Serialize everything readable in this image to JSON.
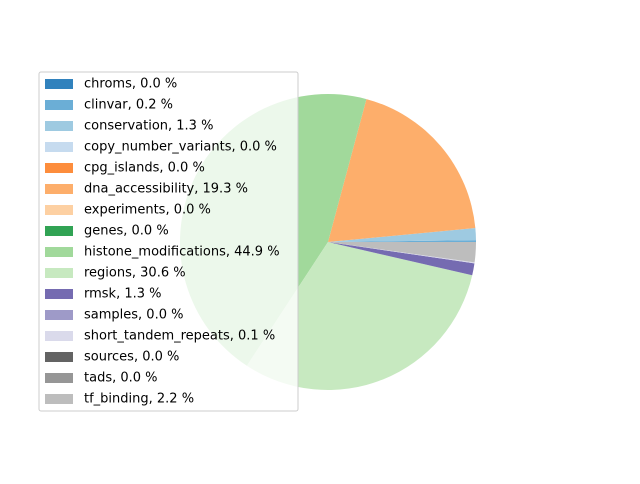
{
  "chart_data": {
    "type": "pie",
    "title": "",
    "legend_location": "center-left",
    "start_angle_deg": 0,
    "direction": "counterclockwise",
    "slices": [
      {
        "label": "chroms",
        "value": 0.0,
        "display": "chroms, 0.0 %",
        "color": "#3182bd"
      },
      {
        "label": "clinvar",
        "value": 0.2,
        "display": "clinvar, 0.2 %",
        "color": "#6baed6"
      },
      {
        "label": "conservation",
        "value": 1.3,
        "display": "conservation, 1.3 %",
        "color": "#9ecae1"
      },
      {
        "label": "copy_number_variants",
        "value": 0.0,
        "display": "copy_number_variants, 0.0 %",
        "color": "#c6dbef"
      },
      {
        "label": "cpg_islands",
        "value": 0.0,
        "display": "cpg_islands, 0.0 %",
        "color": "#fd8d3c"
      },
      {
        "label": "dna_accessibility",
        "value": 19.3,
        "display": "dna_accessibility, 19.3 %",
        "color": "#fdae6b"
      },
      {
        "label": "experiments",
        "value": 0.0,
        "display": "experiments, 0.0 %",
        "color": "#fdd0a2"
      },
      {
        "label": "genes",
        "value": 0.0,
        "display": "genes, 0.0 %",
        "color": "#31a354"
      },
      {
        "label": "histone_modifications",
        "value": 44.9,
        "display": "histone_modifications, 44.9 %",
        "color": "#a1d99b"
      },
      {
        "label": "regions",
        "value": 30.6,
        "display": "regions, 30.6 %",
        "color": "#c7e9c0"
      },
      {
        "label": "rmsk",
        "value": 1.3,
        "display": "rmsk, 1.3 %",
        "color": "#756bb1"
      },
      {
        "label": "samples",
        "value": 0.0,
        "display": "samples, 0.0 %",
        "color": "#9e9ac8"
      },
      {
        "label": "short_tandem_repeats",
        "value": 0.1,
        "display": "short_tandem_repeats, 0.1 %",
        "color": "#dadaeb"
      },
      {
        "label": "sources",
        "value": 0.0,
        "display": "sources, 0.0 %",
        "color": "#636363"
      },
      {
        "label": "tads",
        "value": 0.0,
        "display": "tads, 0.0 %",
        "color": "#969696"
      },
      {
        "label": "tf_binding",
        "value": 2.2,
        "display": "tf_binding, 2.2 %",
        "color": "#bdbdbd"
      }
    ]
  }
}
